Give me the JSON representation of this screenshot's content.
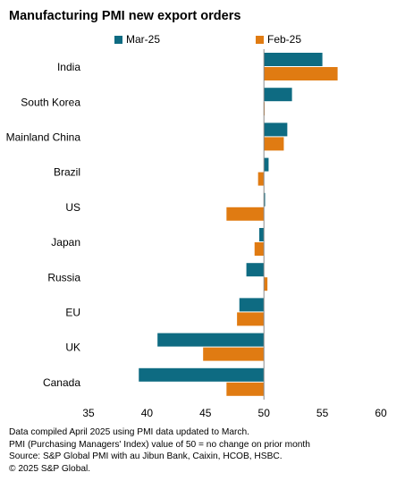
{
  "chart_data": {
    "type": "bar",
    "orientation": "horizontal",
    "title": "Manufacturing PMI new export orders",
    "categories": [
      "India",
      "South Korea",
      "Mainland China",
      "Brazil",
      "US",
      "Japan",
      "Russia",
      "EU",
      "UK",
      "Canada"
    ],
    "series": [
      {
        "name": "Mar-25",
        "color": "#0e6b82",
        "values": [
          55.0,
          52.4,
          52.0,
          50.4,
          50.1,
          49.6,
          48.5,
          47.9,
          40.9,
          39.3
        ]
      },
      {
        "name": "Feb-25",
        "color": "#e07b12",
        "values": [
          56.3,
          50.0,
          51.7,
          49.5,
          46.8,
          49.2,
          50.3,
          47.7,
          44.8,
          46.8
        ]
      }
    ],
    "baseline": 50,
    "xlim": [
      35,
      60
    ],
    "xticks": [
      "35",
      "40",
      "45",
      "50",
      "55",
      "60"
    ],
    "legend_position": "top",
    "grid": false
  },
  "notes": [
    "Data compiled April 2025 using PMI data updated to March.",
    "PMI (Purchasing Managers' Index) value of 50 = no change on prior month",
    "Source: S&P Global PMI with au Jibun Bank, Caixin, HCOB, HSBC.",
    "© 2025 S&P Global."
  ]
}
